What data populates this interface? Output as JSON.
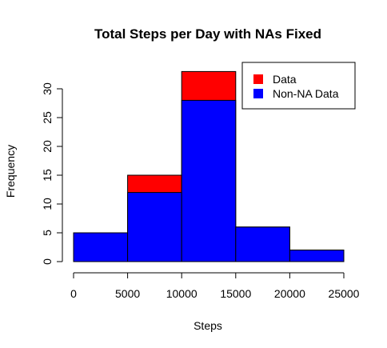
{
  "chart_data": {
    "type": "bar",
    "title": "Total Steps per Day with NAs Fixed",
    "xlabel": "Steps",
    "ylabel": "Frequency",
    "bin_edges": [
      0,
      5000,
      10000,
      15000,
      20000,
      25000
    ],
    "xlim": [
      0,
      25000
    ],
    "ylim": [
      0,
      33
    ],
    "x_ticks": [
      0,
      5000,
      10000,
      15000,
      20000,
      25000
    ],
    "y_ticks": [
      0,
      5,
      10,
      15,
      20,
      25,
      30
    ],
    "grid": false,
    "legend_position": "top-right",
    "series": [
      {
        "name": "Data",
        "color": "#ff0000",
        "values": [
          5,
          15,
          33,
          6,
          2
        ]
      },
      {
        "name": "Non-NA Data",
        "color": "#0000ff",
        "values": [
          5,
          12,
          28,
          6,
          2
        ]
      }
    ]
  }
}
